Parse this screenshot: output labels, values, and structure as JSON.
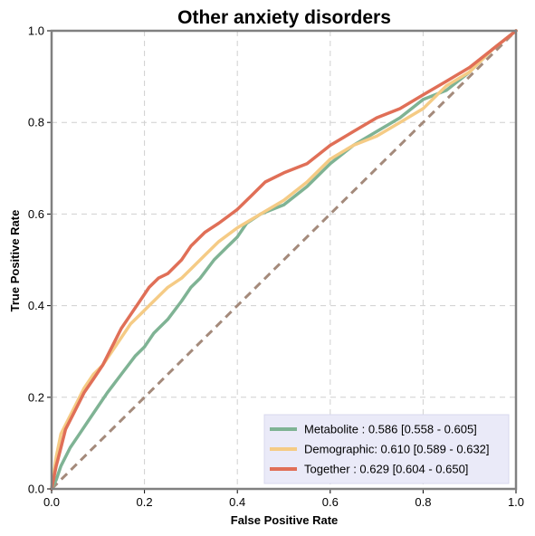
{
  "chart_data": {
    "type": "line",
    "title": "Other anxiety disorders",
    "xlabel": "False Positive Rate",
    "ylabel": "True Positive Rate",
    "xlim": [
      0,
      1
    ],
    "ylim": [
      0,
      1
    ],
    "xticks": [
      "0.0",
      "0.2",
      "0.4",
      "0.6",
      "0.8",
      "1.0"
    ],
    "yticks": [
      "0.0",
      "0.2",
      "0.4",
      "0.6",
      "0.8",
      "1.0"
    ],
    "grid": true,
    "legend_position": "bottom-right",
    "series": [
      {
        "name": "Metabolite",
        "label": "Metabolite     : 0.586 [0.558 - 0.605]",
        "color": "#7fb394",
        "x": [
          0,
          0.01,
          0.02,
          0.04,
          0.06,
          0.08,
          0.1,
          0.12,
          0.15,
          0.18,
          0.2,
          0.22,
          0.25,
          0.28,
          0.3,
          0.32,
          0.35,
          0.38,
          0.4,
          0.42,
          0.45,
          0.5,
          0.55,
          0.6,
          0.65,
          0.7,
          0.75,
          0.8,
          0.85,
          0.9,
          0.95,
          1.0
        ],
        "y": [
          0,
          0.02,
          0.05,
          0.09,
          0.12,
          0.15,
          0.18,
          0.21,
          0.25,
          0.29,
          0.31,
          0.34,
          0.37,
          0.41,
          0.44,
          0.46,
          0.5,
          0.53,
          0.55,
          0.58,
          0.6,
          0.62,
          0.66,
          0.71,
          0.75,
          0.78,
          0.81,
          0.85,
          0.87,
          0.91,
          0.96,
          1.0
        ]
      },
      {
        "name": "Demographic",
        "label": "Demographic: 0.610 [0.589 - 0.632]",
        "color": "#f5cb85",
        "x": [
          0,
          0.01,
          0.02,
          0.03,
          0.05,
          0.07,
          0.09,
          0.11,
          0.13,
          0.15,
          0.17,
          0.19,
          0.21,
          0.23,
          0.25,
          0.28,
          0.3,
          0.33,
          0.36,
          0.4,
          0.45,
          0.5,
          0.55,
          0.6,
          0.65,
          0.7,
          0.75,
          0.8,
          0.85,
          0.9,
          0.95,
          1.0
        ],
        "y": [
          0,
          0.07,
          0.12,
          0.14,
          0.18,
          0.22,
          0.25,
          0.27,
          0.3,
          0.33,
          0.36,
          0.38,
          0.4,
          0.42,
          0.44,
          0.46,
          0.48,
          0.51,
          0.54,
          0.57,
          0.6,
          0.63,
          0.67,
          0.72,
          0.75,
          0.77,
          0.8,
          0.83,
          0.88,
          0.91,
          0.96,
          1.0
        ]
      },
      {
        "name": "Together",
        "label": "Together       : 0.629 [0.604 - 0.650]",
        "color": "#e06f57",
        "x": [
          0,
          0.01,
          0.02,
          0.03,
          0.05,
          0.07,
          0.09,
          0.11,
          0.13,
          0.15,
          0.17,
          0.19,
          0.21,
          0.23,
          0.25,
          0.28,
          0.3,
          0.33,
          0.36,
          0.4,
          0.43,
          0.46,
          0.5,
          0.55,
          0.6,
          0.65,
          0.7,
          0.75,
          0.8,
          0.85,
          0.9,
          0.95,
          1.0
        ],
        "y": [
          0,
          0.05,
          0.09,
          0.13,
          0.17,
          0.21,
          0.24,
          0.27,
          0.31,
          0.35,
          0.38,
          0.41,
          0.44,
          0.46,
          0.47,
          0.5,
          0.53,
          0.56,
          0.58,
          0.61,
          0.64,
          0.67,
          0.69,
          0.71,
          0.75,
          0.78,
          0.81,
          0.83,
          0.86,
          0.89,
          0.92,
          0.96,
          1.0
        ]
      }
    ],
    "reference_line": {
      "style": "dashed",
      "color": "#a48a7b",
      "x": [
        0,
        1
      ],
      "y": [
        0,
        1
      ]
    },
    "colors": {
      "grid": "#cfcfcf",
      "frame": "#808080",
      "legend_bg": "#eaeaf8"
    }
  }
}
